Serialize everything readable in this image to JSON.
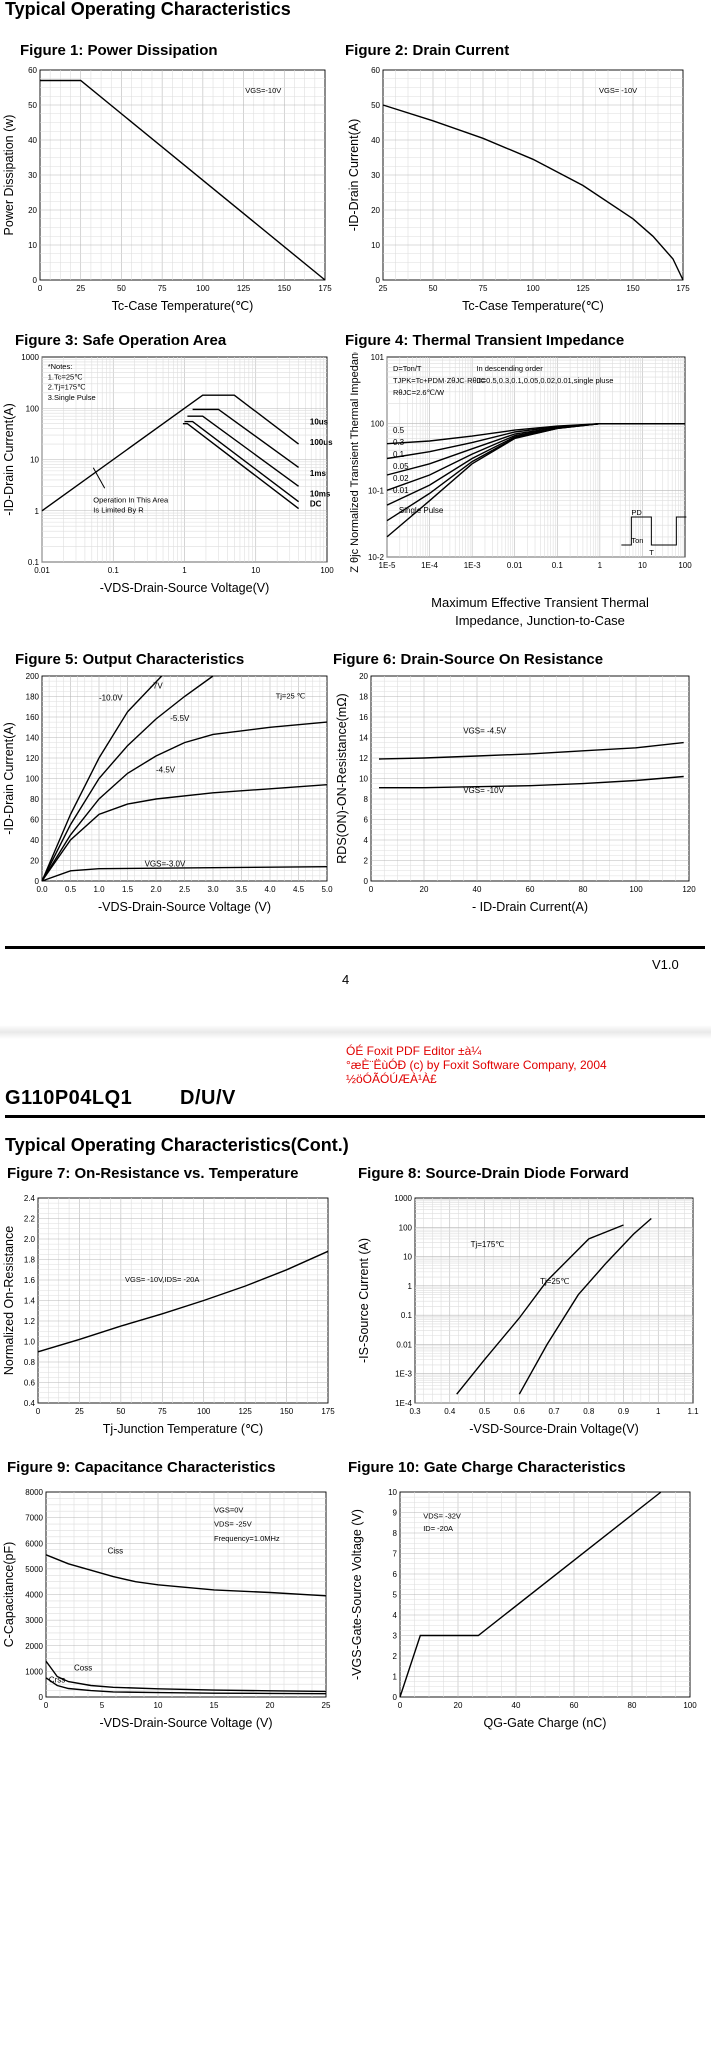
{
  "page1": {
    "section_title": "Typical Operating Characteristics",
    "page_number": "4",
    "version": "V1.0"
  },
  "watermark": {
    "line1": "ÓÉ Foxit PDF Editor ±à¼­",
    "line2": "°æÈ¨ËùÓÐ (c) by Foxit Software Company, 2004",
    "line3": "½öÓÃÓÚÆÀ¹À£"
  },
  "page2": {
    "part_number": "G110P04LQ1",
    "package": "D/U/V",
    "section_title": "Typical Operating Characteristics(Cont.)"
  },
  "figures": {
    "f1": {
      "title": "Figure 1: Power Dissipation"
    },
    "f2": {
      "title": "Figure 2: Drain Current"
    },
    "f3": {
      "title": "Figure 3: Safe Operation Area"
    },
    "f4": {
      "title": "Figure 4: Thermal Transient Impedance",
      "caption_l1": "Maximum Effective Transient Thermal",
      "caption_l2": "Impedance, Junction-to-Case"
    },
    "f5": {
      "title": "Figure 5: Output Characteristics"
    },
    "f6": {
      "title": "Figure 6: Drain-Source On Resistance"
    },
    "f7": {
      "title": "Figure 7: On-Resistance vs. Temperature"
    },
    "f8": {
      "title": "Figure 8: Source-Drain Diode Forward"
    },
    "f9": {
      "title": "Figure 9: Capacitance Characteristics"
    },
    "f10": {
      "title": "Figure 10: Gate Charge Characteristics"
    }
  },
  "chart_data": [
    {
      "id": "f1",
      "type": "line",
      "xlabel": "Tc-Case Temperature(℃)",
      "ylabel": "Power Dissipation (w)",
      "xlim": [
        0,
        175
      ],
      "ylim": [
        0,
        60
      ],
      "xticks": [
        "0",
        "25",
        "50",
        "75",
        "100",
        "125",
        "150",
        "175"
      ],
      "yticks": [
        "0",
        "10",
        "20",
        "30",
        "40",
        "50",
        "60"
      ],
      "annotations": [
        "VGS=-10V"
      ],
      "series": [
        {
          "x": [
            0,
            25,
            175
          ],
          "y": [
            57,
            57,
            0
          ]
        }
      ]
    },
    {
      "id": "f2",
      "type": "line",
      "xlabel": "Tc-Case Temperature(℃)",
      "ylabel": "-ID-Drain Current(A)",
      "xlim": [
        25,
        175
      ],
      "ylim": [
        0,
        60
      ],
      "xticks": [
        "25",
        "50",
        "75",
        "100",
        "125",
        "150",
        "175"
      ],
      "yticks": [
        "0",
        "10",
        "20",
        "30",
        "40",
        "50",
        "60"
      ],
      "annotations": [
        "VGS= -10V"
      ],
      "series": [
        {
          "x": [
            25,
            50,
            75,
            100,
            125,
            150,
            160,
            170,
            175
          ],
          "y": [
            50,
            45.5,
            40.5,
            34.5,
            27,
            17.5,
            12.5,
            6,
            0
          ]
        }
      ]
    },
    {
      "id": "f3",
      "type": "line",
      "xscale": "log",
      "yscale": "log",
      "xlabel": "-VDS-Drain-Source Voltage(V)",
      "ylabel": "-ID-Drain Current(A)",
      "xlim": [
        0.01,
        100
      ],
      "ylim": [
        0.1,
        1000
      ],
      "xticks": [
        "0.01",
        "0.1",
        "1",
        "10",
        "100"
      ],
      "yticks": [
        "0.1",
        "1",
        "10",
        "100",
        "1000"
      ],
      "annotations": [
        "*Notes:",
        "1.Tc=25℃",
        "2.Tj=175℃",
        "3.Single Pulse",
        "Operation In This Area",
        "Is Limited By R"
      ],
      "series": [
        {
          "name": "10us",
          "x": [
            0.01,
            1.8,
            5,
            40
          ],
          "y": [
            1,
            180,
            180,
            20
          ]
        },
        {
          "name": "100us",
          "x": [
            1.3,
            3,
            40
          ],
          "y": [
            95,
            95,
            7
          ]
        },
        {
          "name": "1ms",
          "x": [
            1.1,
            1.8,
            40
          ],
          "y": [
            70,
            70,
            3
          ]
        },
        {
          "name": "10ms",
          "x": [
            1.0,
            1.3,
            40
          ],
          "y": [
            55,
            55,
            1.5
          ]
        },
        {
          "name": "DC",
          "x": [
            0.95,
            1.1,
            40
          ],
          "y": [
            50,
            50,
            1.1
          ]
        }
      ]
    },
    {
      "id": "f4",
      "type": "line",
      "xscale": "log",
      "yscale": "log",
      "xlabel": "",
      "ylabel": "Z θjc Normalized Transient Thermal Impedance",
      "xlim": [
        1e-05,
        100
      ],
      "ylim": [
        0.01,
        10
      ],
      "xticks": [
        "1E-5",
        "1E-4",
        "1E-3",
        "0.01",
        "0.1",
        "1",
        "10",
        "100"
      ],
      "yticks": [
        "10-2",
        "10-1",
        "100",
        "101"
      ],
      "annotations": [
        "D=Ton/T",
        "TJPK=Tc+PDM·ZθJC·RθJC",
        "RθJC=2.6℃/W",
        "In descending order",
        "D=0.5,0.3,0.1,0.05,0.02,0.01,single pluse",
        "PD",
        "Ton",
        "T"
      ],
      "series": [
        {
          "name": "0.5",
          "x": [
            1e-05,
            0.0001,
            0.001,
            0.01,
            0.1,
            1,
            100
          ],
          "y": [
            0.5,
            0.55,
            0.65,
            0.8,
            0.92,
            1,
            1
          ]
        },
        {
          "name": "0.3",
          "x": [
            1e-05,
            0.0001,
            0.001,
            0.01,
            0.1,
            1,
            100
          ],
          "y": [
            0.3,
            0.38,
            0.52,
            0.75,
            0.9,
            1,
            1
          ]
        },
        {
          "name": "0.1",
          "x": [
            1e-05,
            0.0001,
            0.001,
            0.01,
            0.1,
            1,
            100
          ],
          "y": [
            0.17,
            0.25,
            0.42,
            0.7,
            0.88,
            1,
            1
          ]
        },
        {
          "name": "0.05",
          "x": [
            1e-05,
            0.0001,
            0.001,
            0.01,
            0.1,
            1,
            100
          ],
          "y": [
            0.1,
            0.17,
            0.35,
            0.66,
            0.87,
            1,
            1
          ]
        },
        {
          "name": "0.02",
          "x": [
            1e-05,
            0.0001,
            0.001,
            0.01,
            0.1,
            1,
            100
          ],
          "y": [
            0.06,
            0.12,
            0.3,
            0.63,
            0.86,
            1,
            1
          ]
        },
        {
          "name": "0.01",
          "x": [
            1e-05,
            0.0001,
            0.001,
            0.01,
            0.1,
            1,
            100
          ],
          "y": [
            0.035,
            0.09,
            0.27,
            0.61,
            0.85,
            1,
            1
          ]
        },
        {
          "name": "Single Pulse",
          "x": [
            1e-05,
            0.0001,
            0.001,
            0.01,
            0.1,
            1,
            100
          ],
          "y": [
            0.02,
            0.07,
            0.25,
            0.6,
            0.85,
            1,
            1
          ]
        }
      ]
    },
    {
      "id": "f5",
      "type": "line",
      "xlabel": "-VDS-Drain-Source Voltage (V)",
      "ylabel": "-ID-Drain Current(A)",
      "xlim": [
        0,
        5
      ],
      "ylim": [
        0,
        200
      ],
      "xticks": [
        "0.0",
        "0.5",
        "1.0",
        "1.5",
        "2.0",
        "2.5",
        "3.0",
        "3.5",
        "4.0",
        "4.5",
        "5.0"
      ],
      "yticks": [
        "0",
        "20",
        "40",
        "60",
        "80",
        "100",
        "120",
        "140",
        "160",
        "180",
        "200"
      ],
      "annotations": [
        "Tj=25 ℃"
      ],
      "series": [
        {
          "name": "-10.0V",
          "x": [
            0,
            0.5,
            1.0,
            1.5,
            2.1
          ],
          "y": [
            0,
            65,
            120,
            165,
            200
          ]
        },
        {
          "name": "-7V",
          "x": [
            0,
            0.5,
            1.0,
            1.5,
            2.0,
            2.5,
            3.0
          ],
          "y": [
            0,
            55,
            100,
            132,
            158,
            180,
            200
          ]
        },
        {
          "name": "-5.5V",
          "x": [
            0,
            0.5,
            1.0,
            1.5,
            2.0,
            2.5,
            3.0,
            4.0,
            5.0
          ],
          "y": [
            0,
            45,
            80,
            105,
            122,
            135,
            143,
            150,
            155
          ]
        },
        {
          "name": "-4.5V",
          "x": [
            0,
            0.5,
            1.0,
            1.5,
            2.0,
            3.0,
            4.0,
            5.0
          ],
          "y": [
            0,
            40,
            65,
            75,
            80,
            86,
            90,
            94
          ]
        },
        {
          "name": "VGS=-3.0V",
          "x": [
            0,
            0.5,
            1.0,
            2.0,
            3.0,
            4.0,
            5.0
          ],
          "y": [
            0,
            10,
            12,
            12.5,
            13,
            13.5,
            14
          ]
        }
      ]
    },
    {
      "id": "f6",
      "type": "line",
      "xlabel": "- ID-Drain Current(A)",
      "ylabel": "RDS(ON)-ON-Resistance(mΩ)",
      "xlim": [
        0,
        120
      ],
      "ylim": [
        0,
        20
      ],
      "xticks": [
        "0",
        "20",
        "40",
        "60",
        "80",
        "100",
        "120"
      ],
      "yticks": [
        "0",
        "2",
        "4",
        "6",
        "8",
        "10",
        "12",
        "14",
        "16",
        "18",
        "20"
      ],
      "series": [
        {
          "name": "VGS= -4.5V",
          "x": [
            3,
            20,
            40,
            60,
            80,
            100,
            118
          ],
          "y": [
            11.9,
            12.0,
            12.2,
            12.4,
            12.7,
            13.0,
            13.5
          ]
        },
        {
          "name": "VGS= -10V",
          "x": [
            3,
            20,
            40,
            60,
            80,
            100,
            118
          ],
          "y": [
            9.1,
            9.1,
            9.2,
            9.3,
            9.5,
            9.8,
            10.2
          ]
        }
      ]
    },
    {
      "id": "f7",
      "type": "line",
      "xlabel": "Tj-Junction Temperature (℃)",
      "ylabel": "Normalized On-Resistance",
      "xlim": [
        0,
        175
      ],
      "ylim": [
        0.4,
        2.4
      ],
      "xticks": [
        "0",
        "25",
        "50",
        "75",
        "100",
        "125",
        "150",
        "175"
      ],
      "yticks": [
        "0.4",
        "0.6",
        "0.8",
        "1.0",
        "1.2",
        "1.4",
        "1.6",
        "1.8",
        "2.0",
        "2.2",
        "2.4"
      ],
      "annotations": [
        "VGS= -10V,IDS= -20A"
      ],
      "series": [
        {
          "x": [
            0,
            25,
            50,
            75,
            100,
            125,
            150,
            175
          ],
          "y": [
            0.9,
            1.02,
            1.15,
            1.27,
            1.4,
            1.54,
            1.7,
            1.88
          ]
        }
      ]
    },
    {
      "id": "f8",
      "type": "line",
      "yscale": "log",
      "xlabel": "-VSD-Source-Drain Voltage(V)",
      "ylabel": "-IS-Source Current (A)",
      "xlim": [
        0.3,
        1.1
      ],
      "ylim": [
        0.0001,
        1000
      ],
      "xticks": [
        "0.3",
        "0.4",
        "0.5",
        "0.6",
        "0.7",
        "0.8",
        "0.9",
        "1",
        "1.1"
      ],
      "yticks": [
        "1E-4",
        "1E-3",
        "0.01",
        "0.1",
        "1",
        "10",
        "100",
        "1000"
      ],
      "series": [
        {
          "name": "Tj=175℃",
          "x": [
            0.42,
            0.5,
            0.6,
            0.68,
            0.8,
            0.9
          ],
          "y": [
            0.0002,
            0.003,
            0.08,
            1.5,
            40,
            120
          ]
        },
        {
          "name": "Tj=25℃",
          "x": [
            0.6,
            0.68,
            0.77,
            0.85,
            0.93,
            0.98
          ],
          "y": [
            0.0002,
            0.01,
            0.5,
            6,
            60,
            200
          ]
        }
      ]
    },
    {
      "id": "f9",
      "type": "line",
      "xlabel": "-VDS-Drain-Source Voltage (V)",
      "ylabel": "C-Capacitance(pF)",
      "xlim": [
        0,
        25
      ],
      "ylim": [
        0,
        8000
      ],
      "xticks": [
        "0",
        "5",
        "10",
        "15",
        "20",
        "25"
      ],
      "yticks": [
        "0",
        "1000",
        "2000",
        "3000",
        "4000",
        "5000",
        "6000",
        "7000",
        "8000"
      ],
      "annotations": [
        "VGS=0V",
        "VDS= -25V",
        "Frequency=1.0MHz"
      ],
      "series": [
        {
          "name": "Ciss",
          "x": [
            0,
            2,
            4,
            6,
            8,
            10,
            15,
            20,
            25
          ],
          "y": [
            5550,
            5200,
            4950,
            4700,
            4500,
            4380,
            4180,
            4080,
            3950
          ]
        },
        {
          "name": "Coss",
          "x": [
            0,
            1,
            2,
            4,
            6,
            10,
            15,
            20,
            25
          ],
          "y": [
            1400,
            800,
            600,
            450,
            380,
            320,
            270,
            240,
            220
          ]
        },
        {
          "name": "Crss",
          "x": [
            0,
            1,
            2,
            4,
            6,
            10,
            15,
            20,
            25
          ],
          "y": [
            750,
            450,
            330,
            250,
            200,
            170,
            150,
            140,
            130
          ]
        }
      ]
    },
    {
      "id": "f10",
      "type": "line",
      "xlabel": "QG-Gate Charge (nC)",
      "ylabel": "-VGS-Gate-Source Voltage (V)",
      "xlim": [
        0,
        100
      ],
      "ylim": [
        0,
        10
      ],
      "xticks": [
        "0",
        "20",
        "40",
        "60",
        "80",
        "100"
      ],
      "yticks": [
        "0",
        "1",
        "2",
        "3",
        "4",
        "5",
        "6",
        "7",
        "8",
        "9",
        "10"
      ],
      "annotations": [
        "VDS= -32V",
        "ID= -20A"
      ],
      "series": [
        {
          "x": [
            0,
            7,
            27,
            90
          ],
          "y": [
            0,
            3,
            3,
            10
          ]
        }
      ]
    }
  ]
}
